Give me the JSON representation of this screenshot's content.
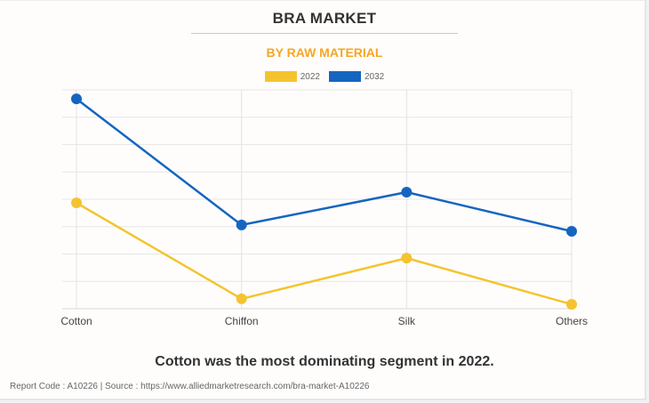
{
  "header": {
    "title": "BRA MARKET",
    "subtitle": "BY RAW MATERIAL"
  },
  "chart_data": {
    "type": "line",
    "title": "BRA MARKET",
    "subtitle": "BY RAW MATERIAL",
    "xlabel": "",
    "ylabel": "",
    "categories": [
      "Cotton",
      "Chiffon",
      "Silk",
      "Others"
    ],
    "series": [
      {
        "name": "2022",
        "color": "#f4c430",
        "values": [
          3.87,
          0.36,
          1.85,
          0.16
        ]
      },
      {
        "name": "2032",
        "color": "#1565c0",
        "values": [
          7.67,
          3.06,
          4.26,
          2.83
        ]
      }
    ],
    "ylim": [
      0,
      8
    ],
    "y_units": "relative (unlabeled axis, gridline units)",
    "grid": true,
    "legend_position": "top-center"
  },
  "insight": "Cotton was the most dominating segment in 2022.",
  "footer": "Report Code : A10226  |  Source : https://www.alliedmarketresearch.com/bra-market-A10226"
}
